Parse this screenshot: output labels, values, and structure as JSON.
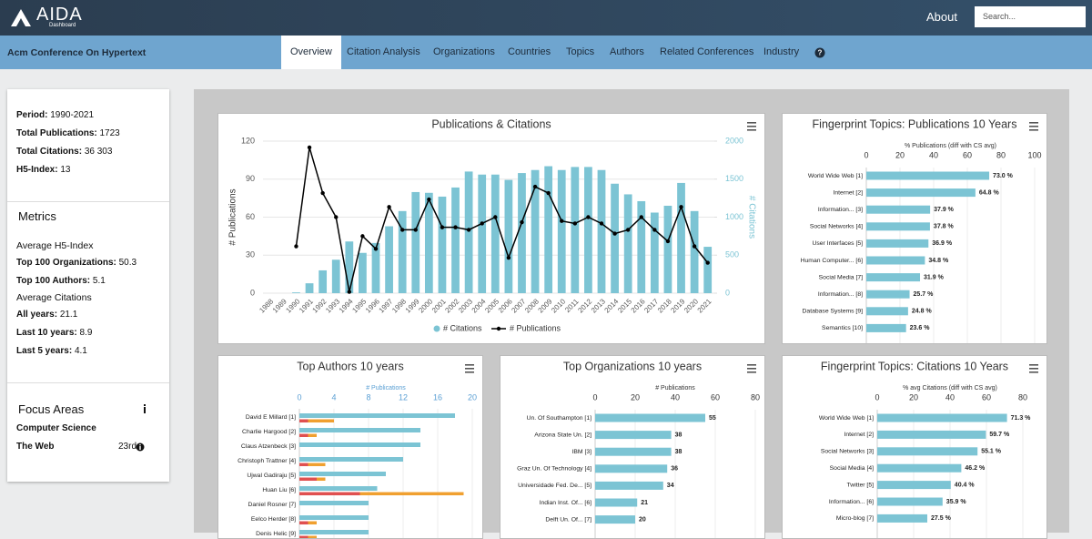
{
  "header": {
    "logo": "AIDA",
    "logo_sub": "Dashboard",
    "about": "About",
    "search_placeholder": "Search..."
  },
  "nav": {
    "conference": "Acm Conference On Hypertext",
    "tabs": [
      "Overview",
      "Citation Analysis",
      "Organizations",
      "Countries",
      "Topics",
      "Authors",
      "Related Conferences",
      "Industry"
    ]
  },
  "sidebar": {
    "stats": [
      {
        "label": "Period:",
        "value": "1990-2021"
      },
      {
        "label": "Total Publications:",
        "value": "1723"
      },
      {
        "label": "Total Citations:",
        "value": "36 303"
      },
      {
        "label": "H5-Index:",
        "value": "13"
      }
    ],
    "metrics": {
      "title": "Metrics",
      "groups": [
        {
          "heading": "Average H5-Index",
          "items": [
            {
              "label": "Top 100 Organizations:",
              "value": "50.3"
            },
            {
              "label": "Top 100 Authors:",
              "value": "5.1"
            }
          ]
        },
        {
          "heading": "Average Citations",
          "items": [
            {
              "label": "All years:",
              "value": "21.1"
            },
            {
              "label": "Last 10 years:",
              "value": "8.9"
            },
            {
              "label": "Last 5 years:",
              "value": "4.1"
            }
          ]
        }
      ]
    },
    "focus": {
      "title": "Focus Areas",
      "areas": [
        {
          "name": "Computer Science"
        },
        {
          "name": "The Web",
          "rank": "23rd"
        }
      ]
    }
  },
  "chart_data": [
    {
      "type": "bar",
      "title": "Publications & Citations",
      "ylabel": "# Publications",
      "y2label": "# Citations",
      "categories": [
        "1988",
        "1989",
        "1990",
        "1991",
        "1992",
        "1993",
        "1994",
        "1995",
        "1996",
        "1997",
        "1998",
        "1999",
        "2000",
        "2001",
        "2002",
        "2003",
        "2004",
        "2005",
        "2006",
        "2007",
        "2008",
        "2009",
        "2010",
        "2011",
        "2012",
        "2013",
        "2014",
        "2015",
        "2016",
        "2017",
        "2018",
        "2019",
        "2020",
        "2021"
      ],
      "series": [
        {
          "name": "# Citations",
          "color": "#7cc4d4",
          "axis": "y2",
          "values": [
            0,
            0,
            10,
            130,
            300,
            440,
            680,
            530,
            660,
            880,
            1080,
            1330,
            1320,
            1270,
            1390,
            1600,
            1560,
            1560,
            1490,
            1580,
            1620,
            1670,
            1620,
            1660,
            1660,
            1620,
            1440,
            1300,
            1210,
            1060,
            1150,
            1450,
            1080,
            610
          ]
        },
        {
          "name": "# Publications",
          "color": "#000000",
          "type": "line",
          "values": [
            null,
            null,
            37,
            115,
            79,
            60,
            1,
            45,
            35,
            68,
            50,
            50,
            74,
            52,
            52,
            50,
            55,
            60,
            28,
            56,
            84,
            79,
            57,
            55,
            60,
            55,
            47,
            50,
            60,
            50,
            41,
            68,
            37,
            24
          ]
        }
      ],
      "ylim": [
        0,
        120
      ],
      "yticks": [
        0,
        30,
        60,
        90,
        120
      ],
      "y2lim": [
        0,
        2000
      ],
      "y2ticks": [
        0,
        500,
        1000,
        1500,
        2000
      ],
      "grid": true,
      "legend": "bottom"
    },
    {
      "type": "bar",
      "orientation": "horizontal",
      "title": "Fingerprint Topics: Publications 10 Years",
      "xlabel": "% Publications (diff with CS avg)",
      "categories": [
        "World Wide Web [1]",
        "Internet [2]",
        "Information... [3]",
        "Social Networks [4]",
        "User Interfaces [5]",
        "Human Computer... [6]",
        "Social Media [7]",
        "Information... [8]",
        "Database Systems [9]",
        "Semantics [10]"
      ],
      "values": [
        73.0,
        64.8,
        37.9,
        37.8,
        36.9,
        34.8,
        31.9,
        25.7,
        24.8,
        23.6
      ],
      "value_labels": [
        "73.0 %",
        "64.8 %",
        "37.9 %",
        "37.8 %",
        "36.9 %",
        "34.8 %",
        "31.9 %",
        "25.7 %",
        "24.8 %",
        "23.6 %"
      ],
      "color": "#7cc4d4",
      "xlim": [
        0,
        100
      ],
      "xticks": [
        0,
        20,
        40,
        60,
        80,
        100
      ]
    },
    {
      "type": "bar",
      "orientation": "horizontal",
      "title": "Top Authors 10 years",
      "xlabel": "# Publications",
      "axis_color": "#5a9fd4",
      "categories": [
        "David E Millard [1]",
        "Charlie Hargood [2]",
        "Claus Atzenbeck [3]",
        "Christoph Trattner [4]",
        "Ujwal Gadiraju [5]",
        "Huan Liu [6]",
        "Daniel Rosner [7]",
        "Eelco Herder [8]",
        "Denis Helic [9]"
      ],
      "series": [
        {
          "color": "#7cc4d4",
          "values": [
            18,
            14,
            14,
            12,
            10,
            9,
            8,
            8,
            8
          ]
        },
        {
          "color": "#f0a030",
          "values": [
            4,
            2,
            0,
            3,
            3,
            19,
            0,
            2,
            2
          ]
        },
        {
          "color": "#e05050",
          "values": [
            1,
            1,
            0,
            1,
            2,
            7,
            0,
            1,
            1
          ]
        }
      ],
      "xlim": [
        0,
        20
      ],
      "xticks": [
        0,
        4,
        8,
        12,
        16,
        20
      ]
    },
    {
      "type": "bar",
      "orientation": "horizontal",
      "title": "Top Organizations 10 years",
      "xlabel": "# Publications",
      "categories": [
        "Un. Of Southampton [1]",
        "Arizona State Un. [2]",
        "IBM [3]",
        "Graz Un. Of Technology [4]",
        "Universidade Fed. De... [5]",
        "Indian Inst. Of... [6]",
        "Delft Un. Of... [7]"
      ],
      "values": [
        55,
        38,
        38,
        36,
        34,
        21,
        20
      ],
      "data_labels": true,
      "color": "#7cc4d4",
      "xlim": [
        0,
        80
      ],
      "xticks": [
        0,
        20,
        40,
        60,
        80
      ]
    },
    {
      "type": "bar",
      "orientation": "horizontal",
      "title": "Fingerprint Topics: Citations 10 Years",
      "xlabel": "% avg Citations (diff with CS avg)",
      "categories": [
        "World Wide Web [1]",
        "Internet [2]",
        "Social Networks [3]",
        "Social Media [4]",
        "Twitter [5]",
        "Information... [6]",
        "Micro-blog [7]"
      ],
      "values": [
        71.3,
        59.7,
        55.1,
        46.2,
        40.4,
        35.9,
        27.5
      ],
      "value_labels": [
        "71.3 %",
        "59.7 %",
        "55.1 %",
        "46.2 %",
        "40.4 %",
        "35.9 %",
        "27.5 %"
      ],
      "color": "#7cc4d4",
      "xlim": [
        0,
        80
      ],
      "xticks": [
        0,
        20,
        40,
        60,
        80
      ]
    }
  ]
}
